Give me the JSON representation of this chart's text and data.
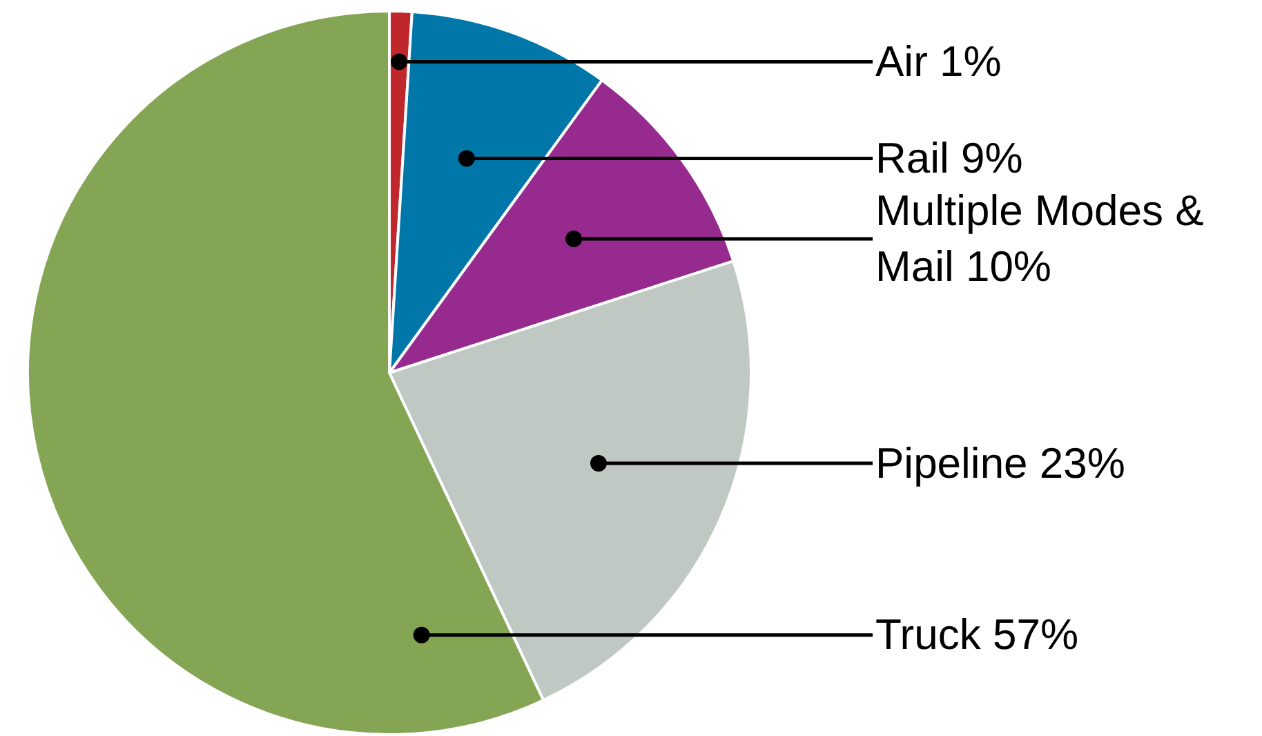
{
  "chart_data": {
    "type": "pie",
    "categories": [
      "Air",
      "Rail",
      "Multiple Modes & Mail",
      "Pipeline",
      "Truck"
    ],
    "values": [
      1,
      9,
      10,
      23,
      57
    ],
    "value_labels": [
      "1%",
      "9%",
      "10%",
      "23%",
      "57%"
    ],
    "colors": [
      "#c0272d",
      "#0077a8",
      "#962a8e",
      "#bfc8c2",
      "#84a553"
    ]
  }
}
